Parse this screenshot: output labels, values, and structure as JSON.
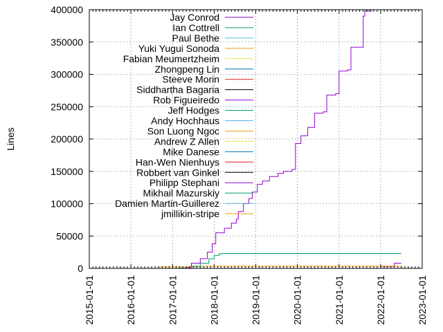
{
  "chart_data": {
    "type": "line",
    "title": "",
    "ylabel": "Lines",
    "xlabel": "",
    "ylim": [
      0,
      400000
    ],
    "xlim": [
      "2015-01-01",
      "2023-01-01"
    ],
    "y_ticks": [
      0,
      50000,
      100000,
      150000,
      200000,
      250000,
      300000,
      350000,
      400000
    ],
    "x_ticks": [
      "2015-01-01",
      "2016-01-01",
      "2017-01-01",
      "2018-01-01",
      "2019-01-01",
      "2020-01-01",
      "2021-01-01",
      "2022-01-01",
      "2023-01-01"
    ],
    "grid": "dotted horizontal and vertical",
    "legend_placement": "top-left, inside plot",
    "series": [
      {
        "name": "Jay Conrod",
        "color": "#9400d3",
        "points": [
          [
            "2015-10-15",
            0
          ],
          [
            "2017-05-01",
            1000
          ],
          [
            "2017-06-15",
            8000
          ],
          [
            "2017-09-01",
            15000
          ],
          [
            "2017-11-01",
            25000
          ],
          [
            "2017-12-15",
            38000
          ],
          [
            "2018-01-15",
            55000
          ],
          [
            "2018-04-01",
            62000
          ],
          [
            "2018-06-01",
            70000
          ],
          [
            "2018-07-15",
            76000
          ],
          [
            "2018-08-01",
            88000
          ],
          [
            "2018-09-15",
            100000
          ],
          [
            "2018-11-01",
            108000
          ],
          [
            "2018-12-01",
            118000
          ],
          [
            "2019-01-15",
            130000
          ],
          [
            "2019-03-01",
            135000
          ],
          [
            "2019-05-01",
            142000
          ],
          [
            "2019-07-15",
            147000
          ],
          [
            "2019-09-01",
            150000
          ],
          [
            "2019-11-15",
            153000
          ],
          [
            "2019-12-15",
            193000
          ],
          [
            "2020-02-01",
            205000
          ],
          [
            "2020-04-01",
            218000
          ],
          [
            "2020-06-01",
            240000
          ],
          [
            "2020-08-15",
            242000
          ],
          [
            "2020-09-15",
            268000
          ],
          [
            "2020-12-01",
            270000
          ],
          [
            "2021-01-01",
            305000
          ],
          [
            "2021-03-15",
            307000
          ],
          [
            "2021-04-15",
            342000
          ],
          [
            "2021-07-15",
            342000
          ],
          [
            "2021-08-01",
            390000
          ],
          [
            "2021-08-15",
            398000
          ],
          [
            "2021-10-15",
            398000
          ]
        ]
      },
      {
        "name": "Ian Cottrell",
        "color": "#009e73",
        "points": [
          [
            "2016-10-01",
            0
          ],
          [
            "2017-03-01",
            500
          ],
          [
            "2017-06-15",
            3000
          ],
          [
            "2017-09-01",
            8000
          ],
          [
            "2017-11-15",
            15000
          ],
          [
            "2018-01-01",
            20000
          ],
          [
            "2018-02-15",
            22500
          ],
          [
            "2018-03-15",
            23000
          ],
          [
            "2022-07-01",
            23000
          ]
        ]
      },
      {
        "name": "Paul Bethe",
        "color": "#56b4e9",
        "points": [
          [
            "2016-10-01",
            0
          ],
          [
            "2022-07-01",
            300
          ]
        ]
      },
      {
        "name": "Yuki Yugui Sonoda",
        "color": "#e69f00",
        "points": [
          [
            "2016-06-01",
            0
          ],
          [
            "2016-09-01",
            2500
          ],
          [
            "2017-06-01",
            3500
          ],
          [
            "2022-07-01",
            4500
          ]
        ]
      },
      {
        "name": "Fabian Meumertzheim",
        "color": "#f0e442",
        "points": [
          [
            "2017-01-01",
            0
          ],
          [
            "2022-07-01",
            2000
          ]
        ]
      },
      {
        "name": "Zhongpeng Lin",
        "color": "#0072b2",
        "points": [
          [
            "2019-05-01",
            0
          ],
          [
            "2022-07-01",
            1500
          ]
        ]
      },
      {
        "name": "Steeve Morin",
        "color": "#e51e10",
        "points": [
          [
            "2017-06-01",
            0
          ],
          [
            "2022-07-01",
            1200
          ]
        ]
      },
      {
        "name": "Siddhartha Bagaria",
        "color": "#000000",
        "points": [
          [
            "2018-06-01",
            0
          ],
          [
            "2022-07-01",
            1000
          ]
        ]
      },
      {
        "name": "Rob Figueiredo",
        "color": "#9400d3",
        "points": [
          [
            "2019-10-01",
            0
          ],
          [
            "2022-01-01",
            3000
          ],
          [
            "2022-05-01",
            8000
          ],
          [
            "2022-07-01",
            8000
          ]
        ]
      },
      {
        "name": "Jeff Hodges",
        "color": "#009e73",
        "points": [
          [
            "2017-06-01",
            0
          ],
          [
            "2022-07-01",
            500
          ]
        ]
      },
      {
        "name": "Andy Hochhaus",
        "color": "#56b4e9",
        "points": [
          [
            "2018-06-01",
            0
          ],
          [
            "2022-07-01",
            500
          ]
        ]
      },
      {
        "name": "Son Luong Ngoc",
        "color": "#e69f00",
        "points": [
          [
            "2021-06-01",
            0
          ],
          [
            "2022-07-01",
            800
          ]
        ]
      },
      {
        "name": "Andrew Z Allen",
        "color": "#f0e442",
        "points": [
          [
            "2018-01-01",
            0
          ],
          [
            "2022-07-01",
            400
          ]
        ]
      },
      {
        "name": "Mike Danese",
        "color": "#0072b2",
        "points": [
          [
            "2016-03-01",
            0
          ],
          [
            "2022-07-01",
            400
          ]
        ]
      },
      {
        "name": "Han-Wen Nienhuys",
        "color": "#e51e10",
        "points": [
          [
            "2016-03-01",
            0
          ],
          [
            "2022-07-01",
            300
          ]
        ]
      },
      {
        "name": "Robbert van Ginkel",
        "color": "#000000",
        "points": [
          [
            "2019-06-01",
            0
          ],
          [
            "2022-07-01",
            300
          ]
        ]
      },
      {
        "name": "Philipp Stephani",
        "color": "#9400d3",
        "points": [
          [
            "2020-10-01",
            0
          ],
          [
            "2022-07-01",
            300
          ]
        ]
      },
      {
        "name": "Mikhail Mazurskiy",
        "color": "#009e73",
        "points": [
          [
            "2018-01-01",
            0
          ],
          [
            "2022-07-01",
            300
          ]
        ]
      },
      {
        "name": "Damien Martin-Guillerez",
        "color": "#56b4e9",
        "points": [
          [
            "2015-10-01",
            0
          ],
          [
            "2022-07-01",
            200
          ]
        ]
      },
      {
        "name": "jmillikin-stripe",
        "color": "#e69f00",
        "points": [
          [
            "2020-06-01",
            0
          ],
          [
            "2022-07-01",
            200
          ]
        ]
      }
    ]
  }
}
